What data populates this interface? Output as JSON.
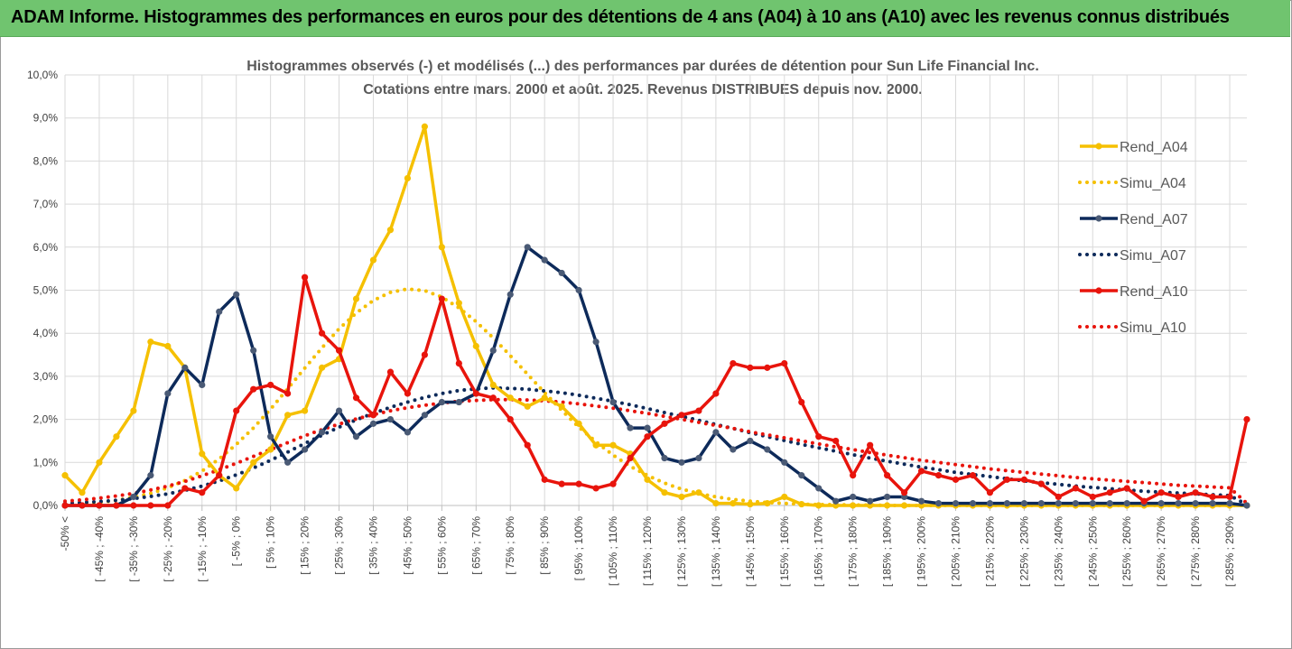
{
  "banner": {
    "text": "ADAM Informe. Histogrammes des performances en euros pour des détentions de 4 ans (A04) à 10 ans (A10) avec les revenus connus distribués"
  },
  "colors": {
    "A04": "#f5c000",
    "A07": "#0d2a5a",
    "A10": "#e8140c",
    "banner": "#70c46f",
    "grid": "#d9d9d9"
  },
  "chart_data": {
    "type": "line",
    "title": "Histogrammes observés (-) et modélisés (...) des performances par durées de détention pour Sun Life Financial Inc.",
    "subtitle": "Cotations entre mars. 2000 et août. 2025. Revenus DISTRIBUES depuis nov. 2000.",
    "ylim": [
      0,
      10
    ],
    "y_unit": "%",
    "y_ticks": [
      "0,0%",
      "1,0%",
      "2,0%",
      "3,0%",
      "4,0%",
      "5,0%",
      "6,0%",
      "7,0%",
      "8,0%",
      "9,0%",
      "10,0%"
    ],
    "x_labels": [
      "-50% <",
      "[ -45% ; -40%",
      "[ -35% ; -30%",
      "[ -25% ; -20%",
      "[ -15% ; -10%",
      "[ -5% ; 0%",
      "[ 5% ; 10%",
      "[ 15% ; 20%",
      "[ 25% ; 30%",
      "[ 35% ; 40%",
      "[ 45% ; 50%",
      "[ 55% ; 60%",
      "[ 65% ; 70%",
      "[ 75% ; 80%",
      "[ 85% ; 90%",
      "[ 95% ; 100%",
      "[ 105% ; 110%",
      "[ 115% ; 120%",
      "[ 125% ; 130%",
      "[ 135% ; 140%",
      "[ 145% ; 150%",
      "[ 155% ; 160%",
      "[ 165% ; 170%",
      "[ 175% ; 180%",
      "[ 185% ; 190%",
      "[ 195% ; 200%",
      "[ 205% ; 210%",
      "[ 215% ; 220%",
      "[ 225% ; 230%",
      "[ 235% ; 240%",
      "[ 245% ; 250%",
      "[ 255% ; 260%",
      "[ 265% ; 270%",
      "[ 275% ; 280%",
      "[ 285% ; 290%"
    ],
    "grid": true,
    "legend_position": "top-right",
    "series": [
      {
        "name": "Rend_A04",
        "style": "solid-markers",
        "color": "#f5c000",
        "values": [
          0.7,
          0.3,
          1.0,
          1.6,
          2.2,
          3.8,
          3.7,
          3.2,
          1.2,
          0.7,
          0.4,
          1.0,
          1.3,
          2.1,
          2.2,
          3.2,
          3.4,
          4.8,
          5.7,
          6.4,
          7.6,
          8.8,
          6.0,
          4.7,
          3.7,
          2.8,
          2.5,
          2.3,
          2.5,
          2.3,
          1.9,
          1.4,
          1.4,
          1.2,
          0.6,
          0.3,
          0.2,
          0.3,
          0.05,
          0.05,
          0.03,
          0.05,
          0.2,
          0.03,
          0,
          0,
          0,
          0,
          0,
          0,
          0,
          0,
          0,
          0,
          0,
          0,
          0,
          0,
          0,
          0,
          0,
          0,
          0,
          0,
          0,
          0,
          0,
          0,
          0,
          0
        ]
      },
      {
        "name": "Simu_A04",
        "style": "dotted",
        "color": "#f5c000",
        "values": [
          0.02,
          0.04,
          0.07,
          0.12,
          0.19,
          0.28,
          0.41,
          0.58,
          0.8,
          1.08,
          1.42,
          1.8,
          2.24,
          2.71,
          3.19,
          3.66,
          4.1,
          4.47,
          4.76,
          4.95,
          5.03,
          4.99,
          4.84,
          4.59,
          4.27,
          3.89,
          3.48,
          3.05,
          2.62,
          2.21,
          1.82,
          1.48,
          1.17,
          0.91,
          0.7,
          0.52,
          0.38,
          0.28,
          0.2,
          0.14,
          0.1,
          0.07,
          0.05,
          0.03,
          0.02,
          0.02,
          0.01,
          0.01,
          0,
          0,
          0,
          0,
          0,
          0,
          0,
          0,
          0,
          0,
          0,
          0,
          0,
          0,
          0,
          0,
          0,
          0,
          0,
          0,
          0,
          0
        ]
      },
      {
        "name": "Rend_A07",
        "style": "solid-markers",
        "color": "#0d2a5a",
        "values": [
          0,
          0,
          0,
          0,
          0.2,
          0.7,
          2.6,
          3.2,
          2.8,
          4.5,
          4.9,
          3.6,
          1.6,
          1.0,
          1.3,
          1.7,
          2.2,
          1.6,
          1.9,
          2.0,
          1.7,
          2.1,
          2.4,
          2.4,
          2.6,
          3.6,
          4.9,
          6.0,
          5.7,
          5.4,
          5.0,
          3.8,
          2.4,
          1.8,
          1.8,
          1.1,
          1.0,
          1.1,
          1.7,
          1.3,
          1.5,
          1.3,
          1.0,
          0.7,
          0.4,
          0.1,
          0.2,
          0.1,
          0.2,
          0.2,
          0.1,
          0.05,
          0.05,
          0.05,
          0.05,
          0.05,
          0.05,
          0.05,
          0.05,
          0.05,
          0.05,
          0.05,
          0.05,
          0.05,
          0.05,
          0.05,
          0.05,
          0.05,
          0.05,
          0
        ]
      },
      {
        "name": "Simu_A07",
        "style": "dotted",
        "color": "#0d2a5a",
        "values": [
          0.05,
          0.07,
          0.09,
          0.12,
          0.16,
          0.21,
          0.27,
          0.35,
          0.45,
          0.57,
          0.71,
          0.87,
          1.05,
          1.24,
          1.44,
          1.63,
          1.82,
          1.99,
          2.14,
          2.28,
          2.4,
          2.51,
          2.6,
          2.67,
          2.71,
          2.73,
          2.72,
          2.7,
          2.66,
          2.62,
          2.56,
          2.49,
          2.42,
          2.34,
          2.25,
          2.16,
          2.07,
          1.98,
          1.88,
          1.79,
          1.69,
          1.6,
          1.51,
          1.42,
          1.34,
          1.26,
          1.18,
          1.1,
          1.03,
          0.96,
          0.89,
          0.83,
          0.77,
          0.72,
          0.67,
          0.62,
          0.57,
          0.53,
          0.49,
          0.45,
          0.42,
          0.39,
          0.36,
          0.33,
          0.31,
          0.29,
          0.27,
          0.25,
          0.23,
          0.02
        ]
      },
      {
        "name": "Rend_A10",
        "style": "solid-markers",
        "color": "#e8140c",
        "values": [
          0,
          0,
          0,
          0,
          0,
          0,
          0,
          0.4,
          0.3,
          0.7,
          2.2,
          2.7,
          2.8,
          2.6,
          5.3,
          4.0,
          3.6,
          2.5,
          2.1,
          3.1,
          2.6,
          3.5,
          4.8,
          3.3,
          2.6,
          2.5,
          2.0,
          1.4,
          0.6,
          0.5,
          0.5,
          0.4,
          0.5,
          1.1,
          1.6,
          1.9,
          2.1,
          2.2,
          2.6,
          3.3,
          3.2,
          3.2,
          3.3,
          2.4,
          1.6,
          1.5,
          0.7,
          1.4,
          0.7,
          0.3,
          0.8,
          0.7,
          0.6,
          0.7,
          0.3,
          0.6,
          0.6,
          0.5,
          0.2,
          0.4,
          0.2,
          0.3,
          0.4,
          0.1,
          0.3,
          0.2,
          0.3,
          0.2,
          0.2,
          2.0
        ]
      },
      {
        "name": "Simu_A10",
        "style": "dotted",
        "color": "#e8140c",
        "values": [
          0.1,
          0.13,
          0.17,
          0.22,
          0.28,
          0.36,
          0.45,
          0.56,
          0.69,
          0.83,
          0.98,
          1.14,
          1.3,
          1.46,
          1.62,
          1.76,
          1.89,
          2.01,
          2.11,
          2.2,
          2.27,
          2.33,
          2.38,
          2.42,
          2.44,
          2.46,
          2.46,
          2.45,
          2.43,
          2.4,
          2.36,
          2.31,
          2.26,
          2.2,
          2.14,
          2.07,
          2.0,
          1.93,
          1.86,
          1.79,
          1.71,
          1.64,
          1.57,
          1.5,
          1.43,
          1.36,
          1.3,
          1.23,
          1.17,
          1.11,
          1.05,
          1.0,
          0.95,
          0.9,
          0.85,
          0.81,
          0.77,
          0.73,
          0.69,
          0.65,
          0.62,
          0.59,
          0.56,
          0.53,
          0.5,
          0.47,
          0.45,
          0.43,
          0.41,
          0.05
        ]
      }
    ]
  }
}
